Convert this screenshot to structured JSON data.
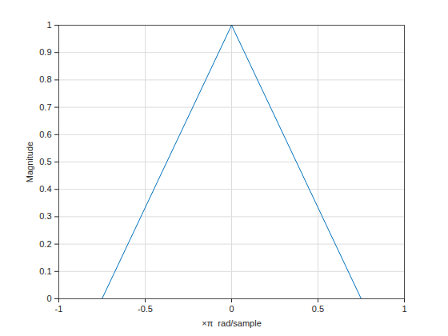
{
  "chart_data": {
    "type": "line",
    "x": [
      -1,
      -0.75,
      0,
      0.75,
      1
    ],
    "values": [
      0,
      0,
      1,
      0,
      0
    ],
    "color": "#0072bd",
    "xlabel": "×π  rad/sample",
    "ylabel": "Magnitude",
    "xlim": [
      -1,
      1
    ],
    "xticks": [
      -1,
      -0.5,
      0,
      0.5,
      1
    ],
    "ylim": [
      0,
      1
    ],
    "yticks": [
      0,
      0.1,
      0.2,
      0.3,
      0.4,
      0.5,
      0.6,
      0.7,
      0.8,
      0.9,
      1
    ],
    "grid": true
  }
}
